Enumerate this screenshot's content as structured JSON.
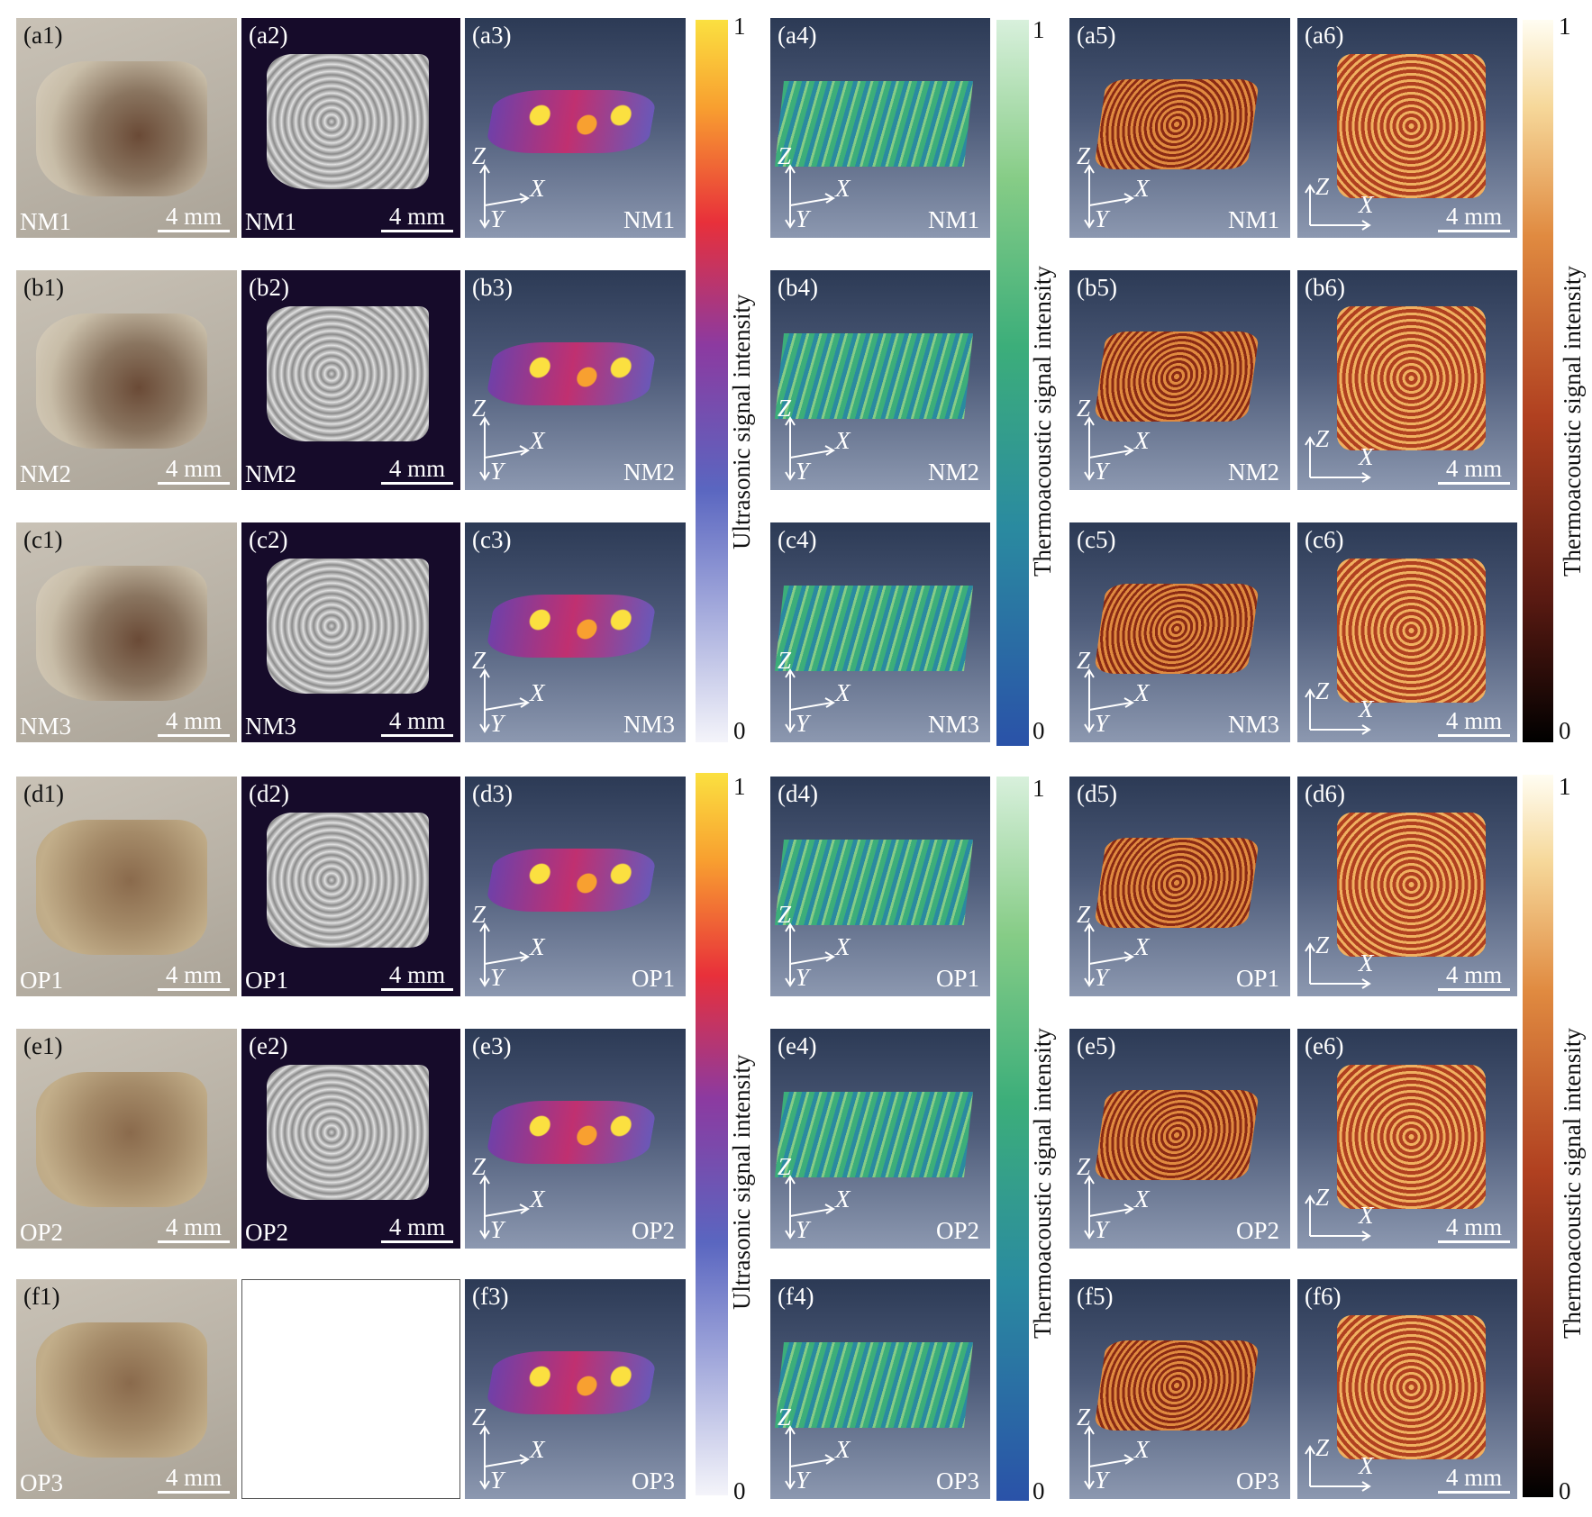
{
  "colorbars": {
    "ultrasonic": {
      "max": "1",
      "min": "0",
      "title": "Ultrasonic signal intensity"
    },
    "thermo_green": {
      "max": "1",
      "min": "0",
      "title": "Thermoacoustic signal intensity"
    },
    "thermo_hot": {
      "max": "1",
      "min": "0",
      "title": "Thermoacoustic signal intensity"
    }
  },
  "axis_labels": {
    "x": "X",
    "y": "Y",
    "z": "Z"
  },
  "scale_text": "4 mm",
  "rows": [
    {
      "sample": "NM1",
      "panels": [
        "(a1)",
        "(a2)",
        "(a3)",
        "(a4)",
        "(a5)",
        "(a6)"
      ]
    },
    {
      "sample": "NM2",
      "panels": [
        "(b1)",
        "(b2)",
        "(b3)",
        "(b4)",
        "(b5)",
        "(b6)"
      ]
    },
    {
      "sample": "NM3",
      "panels": [
        "(c1)",
        "(c2)",
        "(c3)",
        "(c4)",
        "(c5)",
        "(c6)"
      ]
    },
    {
      "sample": "OP1",
      "panels": [
        "(d1)",
        "(d2)",
        "(d3)",
        "(d4)",
        "(d5)",
        "(d6)"
      ]
    },
    {
      "sample": "OP2",
      "panels": [
        "(e1)",
        "(e2)",
        "(e3)",
        "(e4)",
        "(e5)",
        "(e6)"
      ]
    },
    {
      "sample": "OP3",
      "panels": [
        "(f1)",
        "",
        "(f3)",
        "(f4)",
        "(f5)",
        "(f6)"
      ]
    }
  ],
  "colors": {
    "ultrasonic_gradient": [
      "#f4f4fa",
      "#5a66c0",
      "#8c3aa0",
      "#e8303a",
      "#f8a030",
      "#fbe040"
    ],
    "thermo_green_gradient": [
      "#2a52a8",
      "#2a8aa0",
      "#3cae7a",
      "#86cc86",
      "#d8f0dc"
    ],
    "thermo_hot_gradient": [
      "#000000",
      "#5a1a12",
      "#b04020",
      "#e08a40",
      "#f6d89a",
      "#fffdf2"
    ]
  }
}
